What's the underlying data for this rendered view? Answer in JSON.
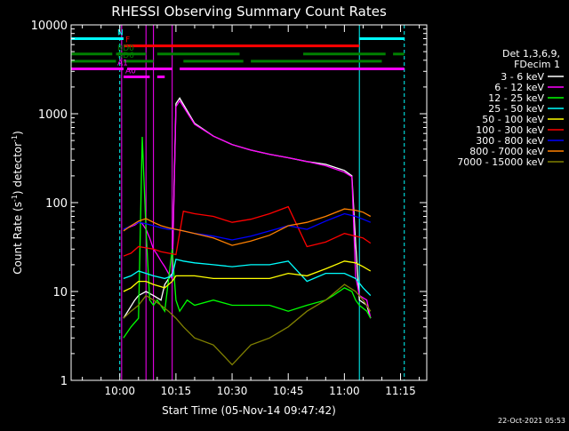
{
  "chart_data": {
    "type": "line",
    "title": "RHESSI Observing Summary Count Rates",
    "xlabel": "Start Time (05-Nov-14 09:47:42)",
    "ylabel": "Count Rate (s⁻¹ detector⁻¹)",
    "ylabel_main": "Count Rate (s",
    "ylabel_mid": ") detector",
    "ylabel_end": ")",
    "sup": "-1",
    "yscale": "log",
    "ylim": [
      1,
      10000
    ],
    "xlim_minutes": [
      -13,
      82
    ],
    "x_ticks": [
      {
        "label": "10:00",
        "min": 0
      },
      {
        "label": "10:15",
        "min": 15
      },
      {
        "label": "10:30",
        "min": 30
      },
      {
        "label": "10:45",
        "min": 45
      },
      {
        "label": "11:00",
        "min": 60
      },
      {
        "label": "11:15",
        "min": 75
      }
    ],
    "y_ticks": [
      {
        "label": "10000",
        "v": 10000
      },
      {
        "label": "1000",
        "v": 1000
      },
      {
        "label": "100",
        "v": 100
      },
      {
        "label": "10",
        "v": 10
      },
      {
        "label": "1",
        "v": 1
      }
    ],
    "legend_header": [
      "Det 1,3,6,9,",
      "FDecim 1"
    ],
    "series": [
      {
        "name": "3 - 6 keV",
        "color": "#ffffff",
        "x": [
          1,
          4,
          5,
          7,
          9,
          11,
          12,
          14,
          15,
          16,
          20,
          25,
          30,
          35,
          40,
          45,
          50,
          55,
          60,
          62,
          63,
          64,
          66,
          67
        ],
        "values": [
          5,
          8,
          9,
          10,
          9,
          8,
          12,
          16,
          1300,
          1500,
          780,
          560,
          450,
          390,
          350,
          320,
          290,
          270,
          230,
          200,
          35,
          8,
          7,
          5
        ]
      },
      {
        "name": "6 - 12 keV",
        "color": "#ff00ff",
        "x": [
          1,
          4,
          5,
          6,
          7,
          8,
          9,
          10,
          11,
          12,
          13,
          14,
          15,
          16,
          20,
          25,
          30,
          35,
          40,
          45,
          50,
          55,
          60,
          62,
          63,
          64,
          66,
          67
        ],
        "values": [
          50,
          56,
          60,
          58,
          50,
          40,
          30,
          26,
          22,
          19,
          16,
          14,
          1200,
          1400,
          760,
          560,
          450,
          390,
          350,
          320,
          290,
          260,
          220,
          195,
          15,
          9,
          8,
          5
        ]
      },
      {
        "name": "12 - 25 keV",
        "color": "#00ff00",
        "x": [
          1,
          3,
          5,
          6,
          7,
          8,
          9,
          10,
          12,
          14,
          15,
          16,
          18,
          20,
          25,
          30,
          35,
          40,
          45,
          50,
          55,
          57,
          60,
          62,
          63,
          64,
          66,
          67
        ],
        "values": [
          3,
          4,
          5,
          550,
          50,
          8,
          7,
          8,
          6,
          30,
          8,
          6,
          8,
          7,
          8,
          7,
          7,
          7,
          6,
          7,
          8,
          9,
          11,
          10,
          8,
          7,
          6,
          5
        ]
      },
      {
        "name": "25 - 50 keV",
        "color": "#00ffff",
        "x": [
          1,
          3,
          5,
          7,
          9,
          12,
          14,
          15,
          17,
          20,
          25,
          30,
          35,
          40,
          45,
          50,
          55,
          60,
          63,
          65,
          67
        ],
        "values": [
          14,
          15,
          17,
          16,
          15,
          14,
          15,
          23,
          22,
          21,
          20,
          19,
          20,
          20,
          22,
          13,
          16,
          16,
          14,
          11,
          9
        ]
      },
      {
        "name": "50 - 100 keV",
        "color": "#ffff00",
        "x": [
          1,
          3,
          5,
          7,
          9,
          12,
          14,
          15,
          17,
          20,
          25,
          30,
          35,
          40,
          45,
          50,
          55,
          60,
          63,
          65,
          67
        ],
        "values": [
          10,
          11,
          13,
          13,
          12,
          11,
          13,
          15,
          15,
          15,
          14,
          14,
          14,
          14,
          16,
          15,
          18,
          22,
          21,
          19,
          17
        ]
      },
      {
        "name": "100 - 300 keV",
        "color": "#ff0000",
        "x": [
          1,
          3,
          5,
          7,
          9,
          11,
          13,
          15,
          17,
          20,
          25,
          30,
          35,
          40,
          45,
          50,
          55,
          60,
          63,
          65,
          67
        ],
        "values": [
          25,
          27,
          32,
          31,
          30,
          28,
          27,
          26,
          80,
          75,
          70,
          60,
          65,
          75,
          90,
          32,
          36,
          45,
          42,
          40,
          35
        ]
      },
      {
        "name": "300 - 800 keV",
        "color": "#0000ff",
        "x": [
          1,
          3,
          5,
          7,
          9,
          11,
          13,
          15,
          17,
          20,
          25,
          30,
          35,
          40,
          45,
          50,
          55,
          60,
          63,
          65,
          67
        ],
        "values": [
          50,
          55,
          60,
          58,
          55,
          52,
          50,
          50,
          48,
          45,
          42,
          38,
          42,
          48,
          55,
          50,
          62,
          75,
          70,
          65,
          60
        ]
      },
      {
        "name": "800 - 7000 keV",
        "color": "#ff8000",
        "x": [
          1,
          3,
          5,
          7,
          9,
          11,
          13,
          15,
          17,
          20,
          25,
          30,
          35,
          40,
          45,
          50,
          55,
          60,
          63,
          65,
          67
        ],
        "values": [
          48,
          55,
          62,
          66,
          60,
          55,
          52,
          50,
          48,
          45,
          40,
          33,
          37,
          43,
          55,
          60,
          70,
          85,
          82,
          78,
          70
        ]
      },
      {
        "name": "7000 - 15000 keV",
        "color": "#808000",
        "x": [
          1,
          3,
          5,
          7,
          9,
          11,
          13,
          15,
          17,
          20,
          25,
          30,
          35,
          40,
          45,
          50,
          55,
          60,
          63,
          65,
          67
        ],
        "values": [
          5,
          6,
          7,
          9,
          8,
          7,
          6,
          5,
          4,
          3,
          2.5,
          1.5,
          2.5,
          3,
          4,
          6,
          8,
          12,
          10,
          8,
          6
        ]
      }
    ],
    "state_bars": [
      {
        "label": "N",
        "color": "#00ffff",
        "value": 7000,
        "spans": [
          [
            -13,
            1
          ],
          [
            64,
            76
          ]
        ]
      },
      {
        "label": "F",
        "color": "#ff0000",
        "value": 5800,
        "spans": [
          [
            1,
            64
          ]
        ]
      },
      {
        "label": "RD0",
        "color": "#008000",
        "value": 4700,
        "spans": [
          [
            -13,
            -2
          ],
          [
            -1,
            7
          ],
          [
            10,
            32
          ],
          [
            49,
            71
          ],
          [
            73,
            76
          ]
        ]
      },
      {
        "label": "RD6",
        "color": "#008000",
        "value": 3900,
        "spans": [
          [
            -13,
            -1
          ],
          [
            1,
            9
          ],
          [
            17,
            33
          ],
          [
            35,
            70
          ]
        ]
      },
      {
        "label": "A1",
        "color": "#ff00ff",
        "value": 3200,
        "spans": [
          [
            -13,
            1
          ],
          [
            2,
            14
          ],
          [
            16,
            76
          ]
        ]
      },
      {
        "label": "A0",
        "color": "#ff00ff",
        "value": 2600,
        "spans": [
          [
            1,
            8
          ],
          [
            10,
            12
          ]
        ]
      }
    ],
    "vertical_markers": [
      {
        "min": -13,
        "color": "#00ffff",
        "style": "solid"
      },
      {
        "min": 0,
        "color": "#00ffff",
        "style": "dashed"
      },
      {
        "min": 64,
        "color": "#00ffff",
        "style": "solid"
      },
      {
        "min": 76,
        "color": "#00ffff",
        "style": "dashed"
      },
      {
        "min": 0.5,
        "color": "#ff00ff",
        "style": "solid"
      },
      {
        "min": 7,
        "color": "#ff00ff",
        "style": "solid"
      },
      {
        "min": 9,
        "color": "#ff00ff",
        "style": "solid"
      },
      {
        "min": 14,
        "color": "#ff00ff",
        "style": "solid"
      }
    ]
  },
  "footer": {
    "timestamp": "22-Oct-2021 05:53"
  }
}
